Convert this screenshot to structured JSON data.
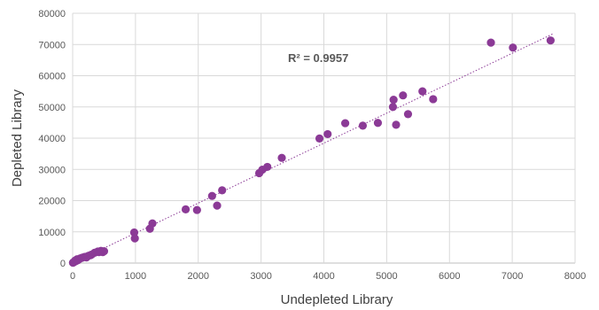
{
  "chart_data": {
    "type": "scatter",
    "title": "",
    "xlabel": "Undepleted Library",
    "ylabel": "Depleted Library",
    "xlim": [
      0,
      8000
    ],
    "ylim": [
      0,
      80000
    ],
    "xticks": [
      0,
      1000,
      2000,
      3000,
      4000,
      5000,
      6000,
      7000,
      8000
    ],
    "yticks": [
      0,
      10000,
      20000,
      30000,
      40000,
      50000,
      60000,
      70000,
      80000
    ],
    "grid": true,
    "legend": "none",
    "annotation": "R² = 0.9957",
    "marker_color": "#8B3A96",
    "trendline_color": "#8B3A96",
    "series": [
      {
        "points": [
          [
            5,
            100
          ],
          [
            10,
            200
          ],
          [
            20,
            300
          ],
          [
            30,
            500
          ],
          [
            40,
            800
          ],
          [
            50,
            600
          ],
          [
            60,
            1000
          ],
          [
            70,
            1200
          ],
          [
            80,
            900
          ],
          [
            100,
            1200
          ],
          [
            120,
            1500
          ],
          [
            150,
            1700
          ],
          [
            180,
            1900
          ],
          [
            200,
            2000
          ],
          [
            220,
            1800
          ],
          [
            250,
            2300
          ],
          [
            280,
            2500
          ],
          [
            300,
            2700
          ],
          [
            350,
            3300
          ],
          [
            400,
            3700
          ],
          [
            420,
            3500
          ],
          [
            450,
            3900
          ],
          [
            480,
            3500
          ],
          [
            500,
            3800
          ],
          [
            980,
            9800
          ],
          [
            990,
            7900
          ],
          [
            1230,
            11000
          ],
          [
            1270,
            12700
          ],
          [
            1800,
            17200
          ],
          [
            1980,
            17000
          ],
          [
            2220,
            21500
          ],
          [
            2300,
            18400
          ],
          [
            2380,
            23300
          ],
          [
            2970,
            28800
          ],
          [
            3020,
            29900
          ],
          [
            3100,
            30800
          ],
          [
            3330,
            33700
          ],
          [
            3930,
            39900
          ],
          [
            4060,
            41300
          ],
          [
            4340,
            44800
          ],
          [
            4620,
            44000
          ],
          [
            4860,
            44900
          ],
          [
            5100,
            50000
          ],
          [
            5110,
            52300
          ],
          [
            5150,
            44300
          ],
          [
            5260,
            53700
          ],
          [
            5340,
            47700
          ],
          [
            5570,
            55000
          ],
          [
            5740,
            52500
          ],
          [
            6660,
            70600
          ],
          [
            7010,
            69000
          ],
          [
            7610,
            71300
          ]
        ]
      }
    ],
    "trendline": {
      "type": "linear",
      "slope": 9.6,
      "intercept": 0
    }
  }
}
